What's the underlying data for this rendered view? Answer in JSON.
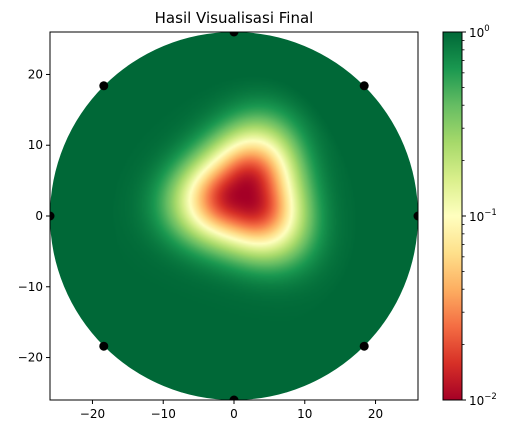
{
  "chart_data": {
    "type": "heatmap",
    "title": "Hasil Visualisasi Final",
    "xlabel": "",
    "ylabel": "",
    "xlim": [
      -26,
      26
    ],
    "ylim": [
      -26,
      26
    ],
    "domain_shape": "circle",
    "domain_radius": 26,
    "x_ticks": [
      -20,
      -10,
      0,
      10,
      20
    ],
    "x_tick_labels": [
      "−20",
      "−10",
      "0",
      "10",
      "20"
    ],
    "y_ticks": [
      -20,
      -10,
      0,
      10,
      20
    ],
    "y_tick_labels": [
      "−20",
      "−10",
      "0",
      "10",
      "20"
    ],
    "colormap": "RdYlGn",
    "color_scale": "log",
    "colorbar": {
      "min": 0.01,
      "max": 1,
      "ticks": [
        0.01,
        0.1,
        1
      ],
      "tick_labels": [
        {
          "base": "10",
          "exp": "−2"
        },
        {
          "base": "10",
          "exp": "−1"
        },
        {
          "base": "10",
          "exp": "0"
        }
      ]
    },
    "field": {
      "description_values": "Low values near center, rising to 1 at the rim",
      "center": [
        1.5,
        3
      ],
      "min_value": 0.01,
      "max_value": 1
    },
    "sensors": [
      {
        "x": 26,
        "y": 0
      },
      {
        "x": 18.4,
        "y": 18.4
      },
      {
        "x": 0,
        "y": 26
      },
      {
        "x": -18.4,
        "y": 18.4
      },
      {
        "x": -26,
        "y": 0
      },
      {
        "x": -18.4,
        "y": -18.4
      },
      {
        "x": 0,
        "y": -26
      },
      {
        "x": 18.4,
        "y": -18.4
      }
    ],
    "colors": {
      "red": "#a50026",
      "orange": "#f46d43",
      "yellow": "#ffffbf",
      "lightgreen": "#a6d96a",
      "green": "#1a9850",
      "darkgreen": "#006837",
      "sensor": "#000000"
    }
  }
}
